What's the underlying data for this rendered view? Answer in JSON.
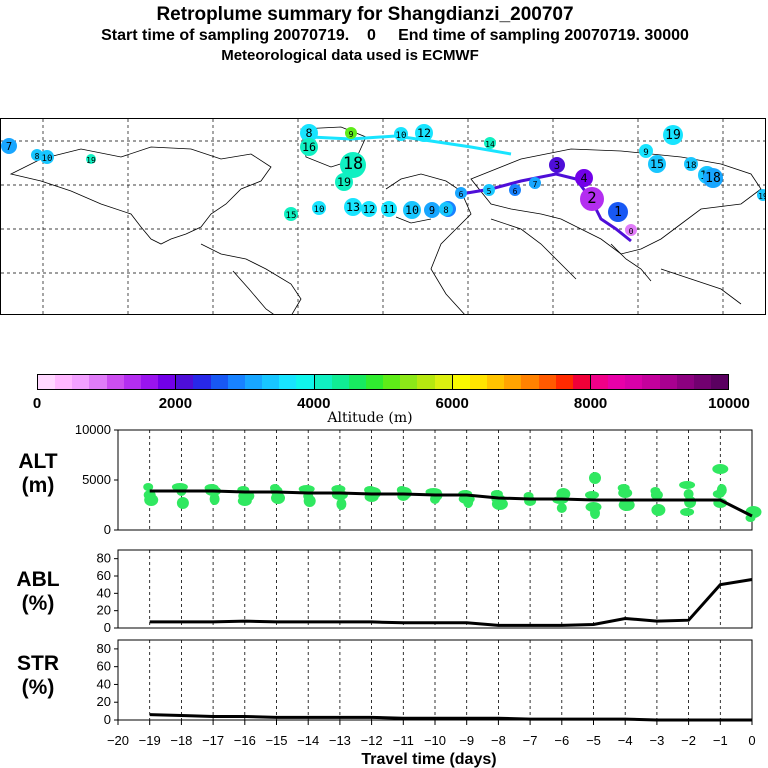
{
  "title": "Retroplume summary for Shangdianzi_200707",
  "subtitle": "Start time of sampling 20070719.    0     End time of sampling 20070719. 30000",
  "met_line": "Meteorological data used is ECMWF",
  "colors": {
    "scale": [
      "#ffd8ff",
      "#ffb8ff",
      "#f2a0ff",
      "#e07cf8",
      "#cc4ef0",
      "#b42ef0",
      "#9a14ee",
      "#7200e8",
      "#4e0ed8",
      "#2828e8",
      "#1858f4",
      "#1882ff",
      "#18a6ff",
      "#18c6ff",
      "#18e4ff",
      "#10f6ec",
      "#10f0c2",
      "#10ec94",
      "#18ea60",
      "#30ec30",
      "#5eec18",
      "#8ce818",
      "#b6e810",
      "#dcf010",
      "#fafa00",
      "#ffe400",
      "#ffc400",
      "#ffa400",
      "#ff8200",
      "#ff5a00",
      "#ff2a00",
      "#f00038",
      "#f00088",
      "#e800a8",
      "#d800a8",
      "#c4009c",
      "#a80090",
      "#8c0080",
      "#720070",
      "#5a0060"
    ],
    "marker": "#30e860",
    "line": "#000000"
  },
  "colorbar": {
    "ticks": [
      "0",
      "2000",
      "4000",
      "6000",
      "8000",
      "10000"
    ],
    "label": "Altitude (m)"
  },
  "map": {
    "labels": [
      {
        "t": "7",
        "c": "#18a6ff"
      },
      {
        "t": "8",
        "c": "#18c6ff"
      },
      {
        "t": "10",
        "c": "#18c6ff"
      },
      {
        "t": "19",
        "c": "#10f0c2"
      },
      {
        "t": "8",
        "c": "#18e4ff"
      },
      {
        "t": "16",
        "c": "#10f0c2"
      },
      {
        "t": "9",
        "c": "#5eec18"
      },
      {
        "t": "18",
        "c": "#10f0c2"
      },
      {
        "t": "19",
        "c": "#10f0c2"
      },
      {
        "t": "10",
        "c": "#18e4ff"
      },
      {
        "t": "12",
        "c": "#18e4ff"
      },
      {
        "t": "14",
        "c": "#10f0c2"
      },
      {
        "t": "15",
        "c": "#10f0c2"
      },
      {
        "t": "13",
        "c": "#18e4ff"
      },
      {
        "t": "12",
        "c": "#18e4ff"
      },
      {
        "t": "11",
        "c": "#18e4ff"
      },
      {
        "t": "10",
        "c": "#18c6ff"
      },
      {
        "t": "9",
        "c": "#18a6ff"
      },
      {
        "t": "8",
        "c": "#1882ff"
      },
      {
        "t": "6",
        "c": "#18a6ff"
      },
      {
        "t": "5",
        "c": "#18c6ff"
      },
      {
        "t": "6",
        "c": "#1882ff"
      },
      {
        "t": "7",
        "c": "#18a6ff"
      },
      {
        "t": "3",
        "c": "#4e0ed8"
      },
      {
        "t": "4",
        "c": "#7200e8"
      },
      {
        "t": "2",
        "c": "#b42ef0"
      },
      {
        "t": "1",
        "c": "#1858f4"
      },
      {
        "t": "0",
        "c": "#e07cf8"
      },
      {
        "t": "19",
        "c": "#18e4ff"
      },
      {
        "t": "9",
        "c": "#18e4ff"
      },
      {
        "t": "15",
        "c": "#18c6ff"
      },
      {
        "t": "18",
        "c": "#18c6ff"
      },
      {
        "t": "12",
        "c": "#18c6ff"
      },
      {
        "t": "18",
        "c": "#18a6ff"
      },
      {
        "t": "19",
        "c": "#18c6ff"
      },
      {
        "t": "10",
        "c": "#18e4ff"
      },
      {
        "t": "8",
        "c": "#18c6ff"
      }
    ]
  },
  "chart_data": [
    {
      "type": "line",
      "panel": "ALT",
      "ylabel": "ALT (m)",
      "ylim": [
        0,
        10000
      ],
      "yticks": [
        0,
        5000,
        10000
      ],
      "x": [
        -19,
        -18,
        -17,
        -16,
        -15,
        -14,
        -13,
        -12,
        -11,
        -10,
        -9,
        -8,
        -7,
        -6,
        -5,
        -4,
        -3,
        -2,
        -1,
        0
      ],
      "series": [
        {
          "name": "median altitude",
          "values": [
            3900,
            3900,
            3900,
            3800,
            3800,
            3700,
            3700,
            3600,
            3600,
            3500,
            3500,
            3200,
            3100,
            3100,
            3000,
            3000,
            3000,
            3000,
            3000,
            1400
          ]
        }
      ],
      "scatter_points": [
        [
          -19,
          4300
        ],
        [
          -19,
          3500
        ],
        [
          -19,
          3000
        ],
        [
          -18,
          4300
        ],
        [
          -18,
          3900
        ],
        [
          -18,
          2700
        ],
        [
          -17,
          4200
        ],
        [
          -17,
          3900
        ],
        [
          -17,
          3100
        ],
        [
          -16,
          4000
        ],
        [
          -16,
          2900
        ],
        [
          -16,
          3400
        ],
        [
          -15,
          4200
        ],
        [
          -15,
          3900
        ],
        [
          -15,
          3200
        ],
        [
          -14,
          4100
        ],
        [
          -14,
          3400
        ],
        [
          -14,
          2900
        ],
        [
          -13,
          4100
        ],
        [
          -13,
          3500
        ],
        [
          -13,
          2600
        ],
        [
          -12,
          4000
        ],
        [
          -12,
          3300
        ],
        [
          -12,
          3700
        ],
        [
          -11,
          4000
        ],
        [
          -11,
          3400
        ],
        [
          -11,
          3700
        ],
        [
          -10,
          3800
        ],
        [
          -10,
          3100
        ],
        [
          -10,
          3500
        ],
        [
          -9,
          3600
        ],
        [
          -9,
          3100
        ],
        [
          -9,
          2800
        ],
        [
          -8,
          3600
        ],
        [
          -8,
          3100
        ],
        [
          -8,
          2600
        ],
        [
          -7,
          3400
        ],
        [
          -7,
          2900
        ],
        [
          -6,
          3600
        ],
        [
          -6,
          3000
        ],
        [
          -6,
          2200
        ],
        [
          -5,
          5200
        ],
        [
          -5,
          3500
        ],
        [
          -5,
          2300
        ],
        [
          -5,
          1700
        ],
        [
          -4,
          4200
        ],
        [
          -4,
          3700
        ],
        [
          -4,
          2500
        ],
        [
          -3,
          3900
        ],
        [
          -3,
          3500
        ],
        [
          -3,
          2000
        ],
        [
          -2,
          4500
        ],
        [
          -2,
          3600
        ],
        [
          -2,
          2800
        ],
        [
          -2,
          1800
        ],
        [
          -1,
          6100
        ],
        [
          -1,
          4000
        ],
        [
          -1,
          3600
        ],
        [
          -1,
          2700
        ],
        [
          0,
          1800
        ],
        [
          0,
          1200
        ]
      ]
    },
    {
      "type": "line",
      "panel": "ABL",
      "ylabel": "ABL (%)",
      "ylim": [
        0,
        90
      ],
      "yticks": [
        0,
        20,
        40,
        60,
        80
      ],
      "x": [
        -19,
        -18,
        -17,
        -16,
        -15,
        -14,
        -13,
        -12,
        -11,
        -10,
        -9,
        -8,
        -7,
        -6,
        -5,
        -4,
        -3,
        -2,
        -1,
        0
      ],
      "series": [
        {
          "name": "ABL fraction",
          "values": [
            7,
            7,
            7,
            8,
            7,
            7,
            7,
            7,
            6,
            6,
            6,
            3,
            3,
            3,
            4,
            11,
            8,
            9,
            50,
            56
          ]
        }
      ]
    },
    {
      "type": "line",
      "panel": "STR",
      "ylabel": "STR (%)",
      "ylim": [
        0,
        90
      ],
      "yticks": [
        0,
        20,
        40,
        60,
        80
      ],
      "x": [
        -19,
        -18,
        -17,
        -16,
        -15,
        -14,
        -13,
        -12,
        -11,
        -10,
        -9,
        -8,
        -7,
        -6,
        -5,
        -4,
        -3,
        -2,
        -1,
        0
      ],
      "series": [
        {
          "name": "STR fraction",
          "values": [
            6,
            5,
            4,
            4,
            3,
            3,
            3,
            3,
            2,
            2,
            2,
            2,
            1,
            1,
            1,
            1,
            0,
            0,
            0,
            0
          ]
        }
      ],
      "xlabel": "Travel time (days)",
      "xticks": [
        -20,
        -19,
        -18,
        -17,
        -16,
        -15,
        -14,
        -13,
        -12,
        -11,
        -10,
        -9,
        -8,
        -7,
        -6,
        -5,
        -4,
        -3,
        -2,
        -1,
        0
      ],
      "xtick_labels": [
        "−20",
        "−19",
        "−18",
        "−17",
        "−16",
        "−15",
        "−14",
        "−13",
        "−12",
        "−11",
        "−10",
        "−9",
        "−8",
        "−7",
        "−6",
        "−5",
        "−4",
        "−3",
        "−2",
        "−1",
        "0"
      ]
    }
  ]
}
